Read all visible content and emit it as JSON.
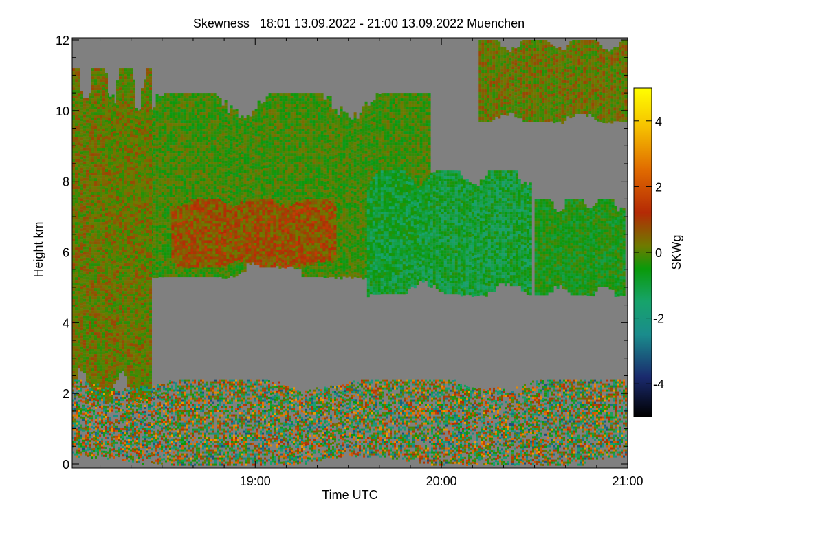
{
  "chart_data": {
    "type": "heatmap",
    "title": "Skewness   18:01 13.09.2022 - 21:00 13.09.2022 Muenchen",
    "xlabel": "Time UTC",
    "ylabel": "Height km",
    "x_range_hours": [
      18.017,
      21.0
    ],
    "ylim": [
      0,
      12
    ],
    "x_ticks": [
      {
        "value": 19.0,
        "label": "19:00"
      },
      {
        "value": 20.0,
        "label": "20:00"
      },
      {
        "value": 21.0,
        "label": "21:00"
      }
    ],
    "y_ticks": [
      {
        "value": 0,
        "label": "0"
      },
      {
        "value": 2,
        "label": "2"
      },
      {
        "value": 4,
        "label": "4"
      },
      {
        "value": 6,
        "label": "6"
      },
      {
        "value": 8,
        "label": "8"
      },
      {
        "value": 10,
        "label": "10"
      },
      {
        "value": 12,
        "label": "12"
      }
    ],
    "colorbar": {
      "label": "SKWg",
      "range": [
        -5,
        5
      ],
      "ticks": [
        {
          "value": 4,
          "label": "4"
        },
        {
          "value": 2,
          "label": "2"
        },
        {
          "value": 0,
          "label": "0"
        },
        {
          "value": -2,
          "label": "-2"
        },
        {
          "value": -4,
          "label": "-4"
        }
      ],
      "colors": [
        "#000000",
        "#1a2a6e",
        "#1a8c8c",
        "#17a36b",
        "#0a9a0a",
        "#6f7a00",
        "#b42a05",
        "#e06a00",
        "#f5c000",
        "#ffff00"
      ]
    },
    "background_color": "#808080",
    "regions": [
      {
        "name": "cirrus-layer-main",
        "t_start": 18.2,
        "t_end": 19.95,
        "z_bottom": 5.3,
        "z_top": 10.5,
        "dominant_skewness": 0
      },
      {
        "name": "red-streaks",
        "t_start": 18.55,
        "t_end": 19.45,
        "z_bottom": 5.6,
        "z_top": 7.5,
        "dominant_skewness": 1.2
      },
      {
        "name": "cloud-band-mid",
        "t_start": 19.6,
        "t_end": 20.5,
        "z_bottom": 4.8,
        "z_top": 8.3,
        "dominant_skewness": -1
      },
      {
        "name": "cloud-right",
        "t_start": 20.5,
        "t_end": 21.0,
        "z_bottom": 4.8,
        "z_top": 7.5,
        "dominant_skewness": -0.5
      },
      {
        "name": "upper-cirrus-right",
        "t_start": 20.2,
        "t_end": 21.0,
        "z_bottom": 9.7,
        "z_top": 12,
        "dominant_skewness": 0.5
      },
      {
        "name": "left-fallstreak",
        "t_start": 18.017,
        "t_end": 18.45,
        "z_bottom": 1.8,
        "z_top": 11.2,
        "dominant_skewness": 0.5
      },
      {
        "name": "boundary-layer-noise",
        "t_start": 18.017,
        "t_end": 21.0,
        "z_bottom": 0,
        "z_top": 2.4,
        "dominant_skewness": 0
      }
    ]
  }
}
